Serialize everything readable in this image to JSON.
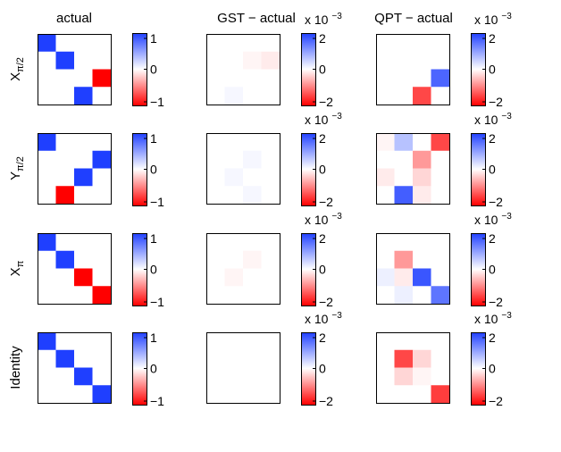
{
  "chart_data": {
    "type": "heatmap",
    "title": "",
    "column_titles": [
      "actual",
      "GST − actual",
      "QPT − actual"
    ],
    "row_labels": [
      {
        "base": "X",
        "sub": "π/2"
      },
      {
        "base": "Y",
        "sub": "π/2"
      },
      {
        "base": "X",
        "sub": "π"
      },
      {
        "base": "Identity",
        "sub": ""
      }
    ],
    "colormap": {
      "negative": "#ff0000",
      "zero": "#ffffff",
      "positive": "#1f3fff"
    },
    "colorbars": [
      {
        "ticks": [
          "1",
          "0",
          "−1"
        ],
        "multiplier": ""
      },
      {
        "ticks": [
          "2",
          "0",
          "−2"
        ],
        "multiplier": "x 10",
        "exponent": "−3"
      },
      {
        "ticks": [
          "2",
          "0",
          "−2"
        ],
        "multiplier": "x 10",
        "exponent": "−3"
      }
    ],
    "ranges": [
      [
        -1,
        1
      ],
      [
        -0.0025,
        0.0025
      ],
      [
        -0.0025,
        0.0025
      ]
    ],
    "matrices": [
      [
        [
          [
            1,
            0,
            0,
            0
          ],
          [
            0,
            1,
            0,
            0
          ],
          [
            0,
            0,
            0,
            -1
          ],
          [
            0,
            0,
            1,
            0
          ]
        ],
        [
          [
            0,
            0,
            0,
            0
          ],
          [
            0,
            0,
            -0.0001,
            -0.0002
          ],
          [
            0,
            0,
            0,
            0
          ],
          [
            0,
            0.0001,
            0,
            0
          ]
        ],
        [
          [
            0,
            0,
            0,
            0
          ],
          [
            0,
            0,
            0,
            0
          ],
          [
            0,
            0,
            0,
            0.002
          ],
          [
            0,
            0,
            -0.0018,
            0
          ]
        ]
      ],
      [
        [
          [
            1,
            0,
            0,
            0
          ],
          [
            0,
            0,
            0,
            1
          ],
          [
            0,
            0,
            1,
            0
          ],
          [
            0,
            -1,
            0,
            0
          ]
        ],
        [
          [
            0,
            0,
            0,
            0
          ],
          [
            0,
            0,
            0.0001,
            0
          ],
          [
            0,
            0.0001,
            0,
            0
          ],
          [
            0,
            0,
            0.0001,
            0
          ]
        ],
        [
          [
            -0.0001,
            0.0008,
            0,
            -0.0018
          ],
          [
            0,
            0,
            -0.001,
            0
          ],
          [
            -0.0002,
            0,
            -0.0004,
            0
          ],
          [
            0,
            0.0021,
            -0.0002,
            0
          ]
        ]
      ],
      [
        [
          [
            1,
            0,
            0,
            0
          ],
          [
            0,
            1,
            0,
            0
          ],
          [
            0,
            0,
            -1,
            0
          ],
          [
            0,
            0,
            0,
            -1
          ]
        ],
        [
          [
            0,
            0,
            0,
            0
          ],
          [
            0,
            0,
            -0.0001,
            0
          ],
          [
            0,
            -0.0001,
            0,
            0
          ],
          [
            0,
            0,
            0,
            0
          ]
        ],
        [
          [
            0,
            0,
            0,
            0
          ],
          [
            0,
            -0.001,
            0,
            0
          ],
          [
            0.0002,
            -0.0002,
            0.0022,
            0
          ],
          [
            0,
            0.0002,
            0,
            0.0018
          ]
        ]
      ],
      [
        [
          [
            1,
            0,
            0,
            0
          ],
          [
            0,
            1,
            0,
            0
          ],
          [
            0,
            0,
            1,
            0
          ],
          [
            0,
            0,
            0,
            1
          ]
        ],
        [
          [
            0,
            0,
            0,
            0
          ],
          [
            0,
            0,
            0,
            0
          ],
          [
            0,
            0,
            0,
            0
          ],
          [
            0,
            0,
            0,
            0
          ]
        ],
        [
          [
            0,
            0,
            0,
            0
          ],
          [
            0,
            -0.0018,
            -0.0004,
            0
          ],
          [
            0,
            -0.0004,
            -0.0001,
            0
          ],
          [
            0,
            0,
            0,
            -0.0019
          ]
        ]
      ]
    ]
  }
}
